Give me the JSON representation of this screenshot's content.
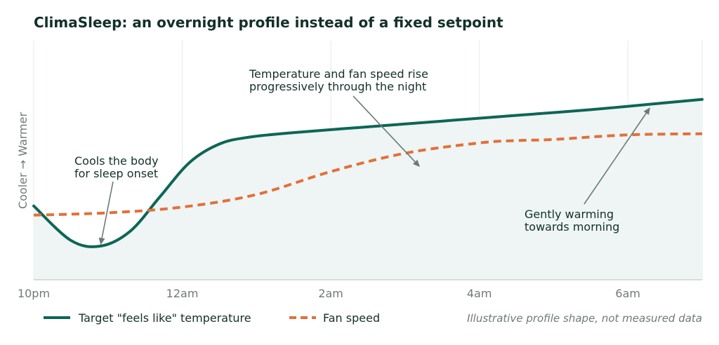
{
  "chart_data": {
    "type": "line",
    "title": "ClimaSleep: an overnight profile instead of a fixed setpoint",
    "ylabel": "Cooler → Warmer",
    "x_ticks": [
      "10pm",
      "12am",
      "2am",
      "4am",
      "6am"
    ],
    "xlim_hours": [
      0,
      9
    ],
    "ylim": [
      0,
      1
    ],
    "grid": "vertical",
    "legend_position": "bottom-left",
    "series": [
      {
        "name": "Target \"feels like\" temperature",
        "style": "solid",
        "color": "#0e6655",
        "fill": true,
        "x": [
          0,
          0.5,
          0.9,
          1.3,
          1.7,
          2.1,
          2.5,
          2.9,
          3.5,
          4.5,
          5.5,
          6.5,
          7.5,
          8.5,
          9
        ],
        "y": [
          0.27,
          0.12,
          0.095,
          0.16,
          0.31,
          0.46,
          0.54,
          0.57,
          0.59,
          0.615,
          0.64,
          0.665,
          0.69,
          0.72,
          0.735
        ]
      },
      {
        "name": "Fan speed",
        "style": "dashed",
        "color": "#e2703a",
        "fill": false,
        "x": [
          0,
          1,
          2,
          3,
          4,
          5,
          6,
          6.5,
          7,
          8,
          9
        ],
        "y": [
          0.23,
          0.24,
          0.265,
          0.32,
          0.42,
          0.5,
          0.545,
          0.555,
          0.56,
          0.58,
          0.585
        ]
      }
    ],
    "annotations": [
      {
        "lines": [
          "Cools the body",
          "for sleep onset"
        ],
        "x": 0.9,
        "y": 0.1
      },
      {
        "lines": [
          "Temperature and fan speed rise",
          "progressively through the night"
        ],
        "x": 5.2,
        "y": 0.44
      },
      {
        "lines": [
          "Gently warming",
          "towards morning"
        ],
        "x": 8.3,
        "y": 0.7
      }
    ],
    "footnote": "Illustrative profile shape, not measured data",
    "colors": {
      "temperature": "#0e6655",
      "fan": "#e2703a",
      "fill": "#eef5f4",
      "grid": "#e6e9e8",
      "arrow": "#6c7a77"
    }
  }
}
